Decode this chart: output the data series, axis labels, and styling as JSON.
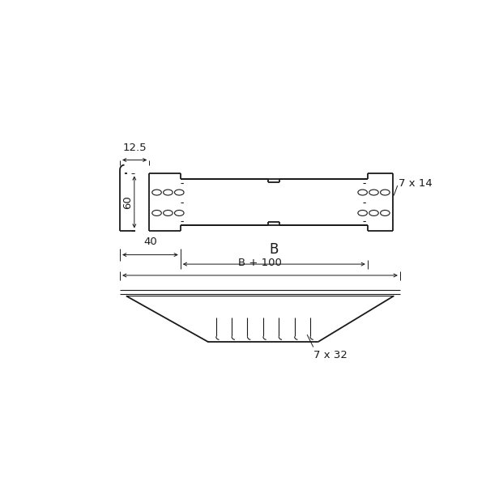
{
  "bg_color": "#ffffff",
  "line_color": "#1a1a1a",
  "lw_main": 1.3,
  "lw_thin": 0.8,
  "lw_dim": 0.7,
  "labels": {
    "dim_125": "12.5",
    "dim_60": "60",
    "dim_40": "40",
    "dim_B": "B",
    "dim_B100": "B + 100",
    "dim_7x14": "7 x 14",
    "dim_7x32": "7 x 32"
  },
  "font_size": 9.5
}
